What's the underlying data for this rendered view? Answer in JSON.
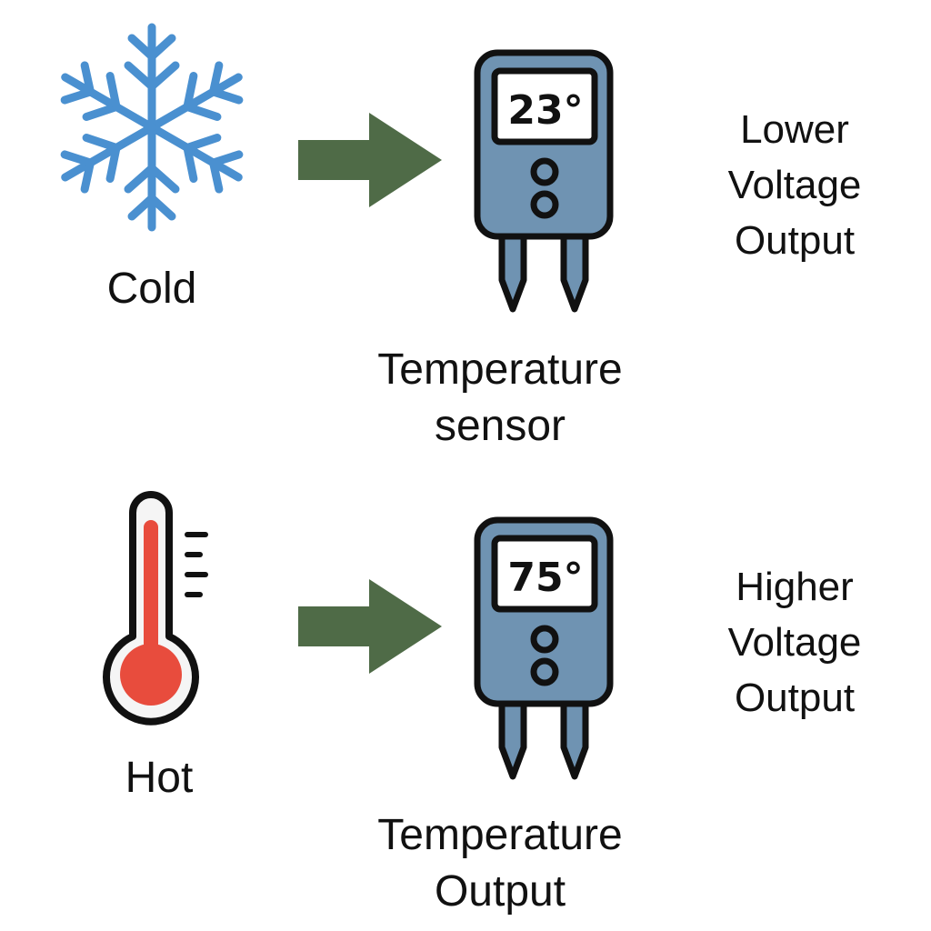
{
  "rows": [
    {
      "condition_label": "Cold",
      "condition_icon": "snowflake-icon",
      "sensor_reading": "23°",
      "sensor_caption_line1": "Temperature",
      "sensor_caption_line2": "sensor",
      "output_line1": "Lower",
      "output_line2": "Voltage",
      "output_line3": "Output"
    },
    {
      "condition_label": "Hot",
      "condition_icon": "thermometer-icon",
      "sensor_reading": "75°",
      "sensor_caption_line1": "Temperature",
      "sensor_caption_line2": "Output",
      "output_line1": "Higher",
      "output_line2": "Voltage",
      "output_line3": "Output"
    }
  ],
  "colors": {
    "snowflake": "#4a90d0",
    "arrow": "#4f6b47",
    "sensor_body": "#6f93b2",
    "thermo_fluid": "#e84c3d",
    "outline": "#111111"
  }
}
